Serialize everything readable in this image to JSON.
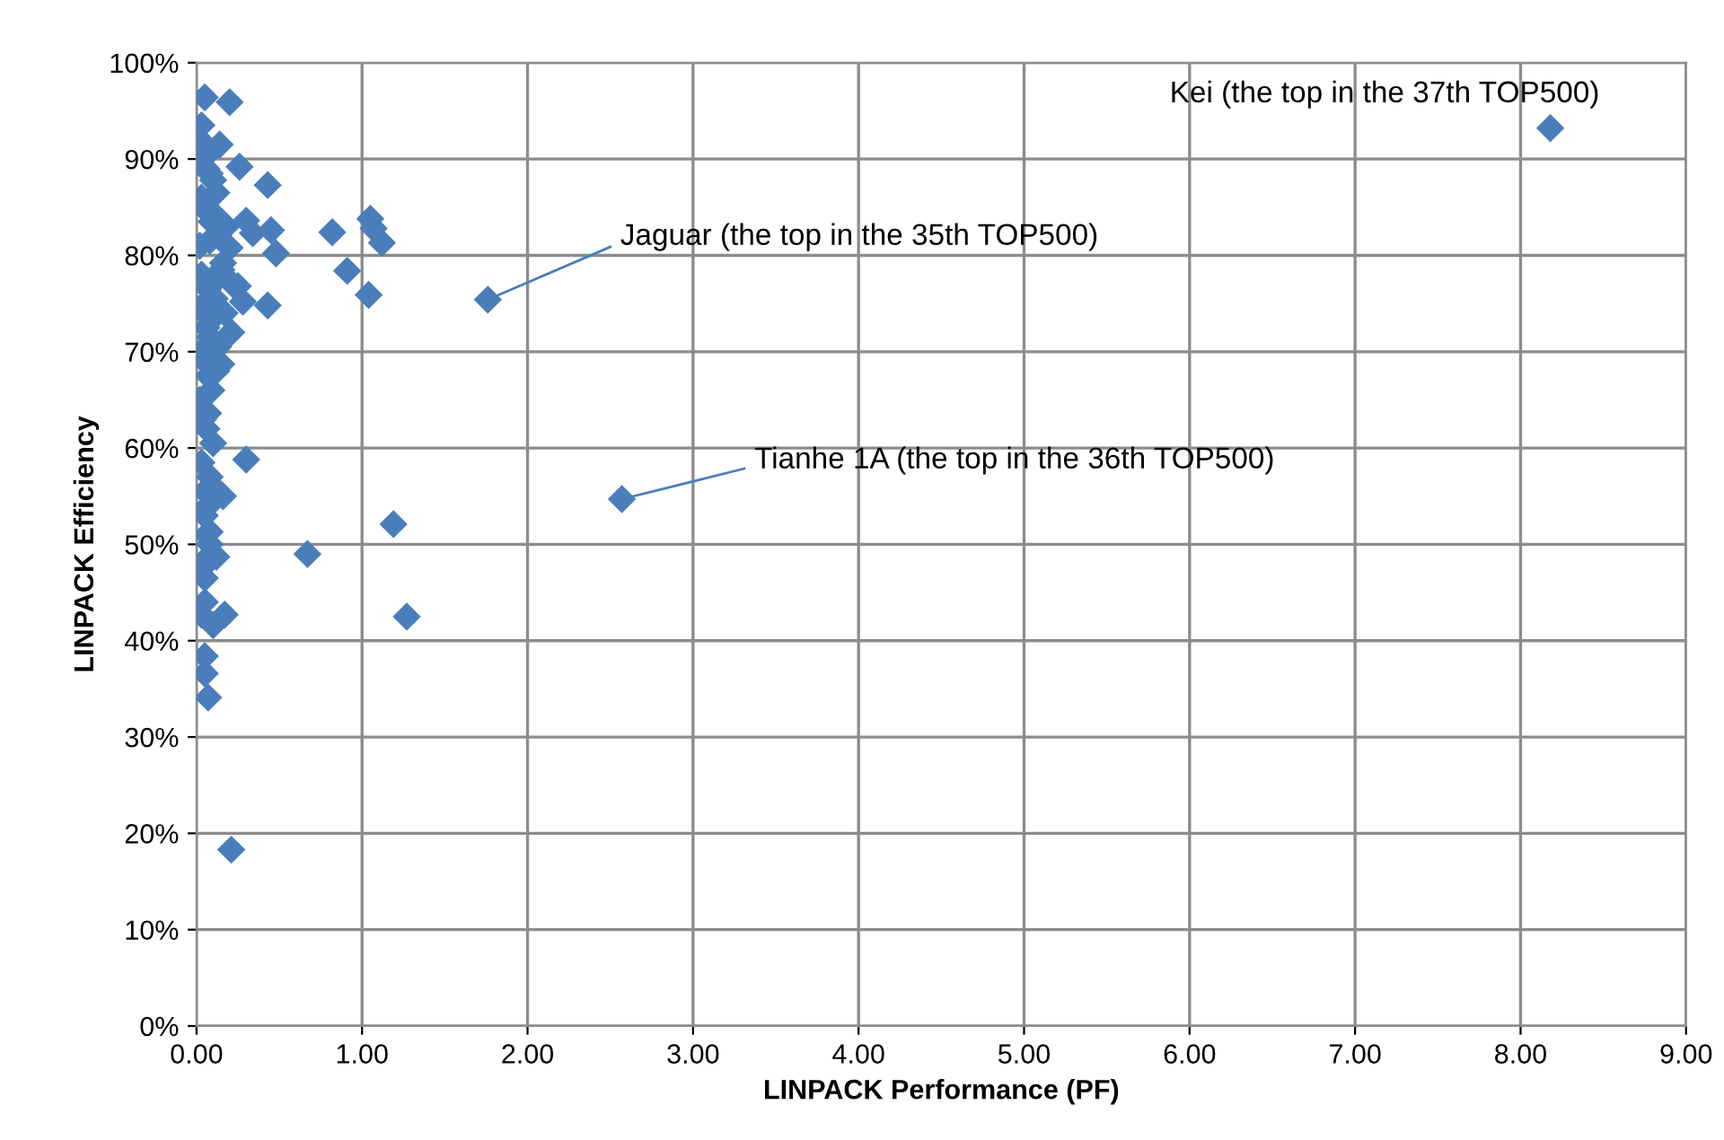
{
  "chart_data": {
    "type": "scatter",
    "xlabel": "LINPACK Performance (PF)",
    "ylabel": "LINPACK Efficiency",
    "series": [
      {
        "color": "#4a7ebb",
        "x": [
          8.18,
          1.76,
          2.57,
          0.82,
          1.05,
          1.07,
          1.12,
          0.91,
          1.04,
          1.19,
          0.67,
          1.27,
          0.43,
          0.48,
          0.43,
          0.3,
          0.2,
          0.05,
          0.26,
          0.3,
          0.45,
          0.34,
          0.28,
          0.21,
          0.15,
          0.07,
          0.1,
          0.17,
          0.03,
          0.1,
          0.05,
          0.05,
          0.07,
          0.21,
          0.05,
          0.07,
          0.12,
          0.05,
          0.16,
          0.08,
          0.02,
          0.03,
          0.05,
          0.06,
          0.08,
          0.1,
          0.12,
          0.14,
          0.03,
          0.05,
          0.09,
          0.11,
          0.13,
          0.18,
          0.02,
          0.08,
          0.15,
          0.2,
          0.22,
          0.03,
          0.07,
          0.11,
          0.14,
          0.17,
          0.02,
          0.06,
          0.08,
          0.1,
          0.13,
          0.16,
          0.25,
          0.03,
          0.05,
          0.07,
          0.09,
          0.12,
          0.02,
          0.04,
          0.06,
          0.08,
          0.1,
          0.03,
          0.05,
          0.07,
          0.06,
          0.08,
          0.03,
          0.05
        ],
        "values": [
          93.2,
          75.4,
          54.7,
          82.4,
          83.8,
          82.8,
          81.3,
          78.4,
          75.9,
          52.1,
          49.0,
          42.5,
          87.3,
          80.2,
          74.8,
          58.8,
          95.9,
          96.4,
          89.2,
          83.6,
          82.6,
          82.3,
          75.2,
          72.0,
          68.7,
          63.6,
          60.5,
          42.7,
          42.7,
          41.6,
          38.4,
          36.6,
          34.1,
          18.3,
          46.5,
          48.7,
          48.7,
          53.0,
          55.0,
          51.3,
          92.0,
          93.5,
          90.2,
          89.0,
          88.5,
          87.8,
          86.5,
          91.5,
          86.0,
          84.8,
          83.5,
          84.2,
          82.0,
          83.0,
          81.0,
          81.5,
          78.5,
          80.8,
          77.0,
          78.0,
          76.5,
          75.5,
          77.8,
          74.0,
          74.5,
          72.5,
          71.5,
          73.5,
          70.5,
          79.2,
          76.8,
          70.0,
          69.0,
          67.5,
          66.0,
          68.0,
          65.0,
          63.0,
          62.0,
          57.0,
          56.0,
          58.5,
          55.5,
          54.0,
          51.0,
          50.0,
          47.5,
          44.0
        ]
      }
    ],
    "xlim": [
      0,
      9
    ],
    "xticks": [
      {
        "value": 0,
        "label": "0.00"
      },
      {
        "value": 1,
        "label": "1.00"
      },
      {
        "value": 2,
        "label": "2.00"
      },
      {
        "value": 3,
        "label": "3.00"
      },
      {
        "value": 4,
        "label": "4.00"
      },
      {
        "value": 5,
        "label": "5.00"
      },
      {
        "value": 6,
        "label": "6.00"
      },
      {
        "value": 7,
        "label": "7.00"
      },
      {
        "value": 8,
        "label": "8.00"
      },
      {
        "value": 9,
        "label": "9.00"
      }
    ],
    "ylim": [
      0,
      100
    ],
    "yticks": [
      {
        "value": 0,
        "label": "0%"
      },
      {
        "value": 10,
        "label": "10%"
      },
      {
        "value": 20,
        "label": "20%"
      },
      {
        "value": 30,
        "label": "30%"
      },
      {
        "value": 40,
        "label": "40%"
      },
      {
        "value": 50,
        "label": "50%"
      },
      {
        "value": 60,
        "label": "60%"
      },
      {
        "value": 70,
        "label": "70%"
      },
      {
        "value": 80,
        "label": "80%"
      },
      {
        "value": 90,
        "label": "90%"
      },
      {
        "value": 100,
        "label": "100%"
      }
    ],
    "grid": true,
    "marker": "diamond",
    "annotations": [
      {
        "text": "Kei (the top in the 37th TOP500)",
        "x": 8.18,
        "y": 93.2
      },
      {
        "text": "Jaguar (the top in the 35th TOP500)",
        "x": 1.76,
        "y": 75.4
      },
      {
        "text": "Tianhe 1A (the top in the 36th TOP500)",
        "x": 2.57,
        "y": 54.7
      }
    ]
  }
}
